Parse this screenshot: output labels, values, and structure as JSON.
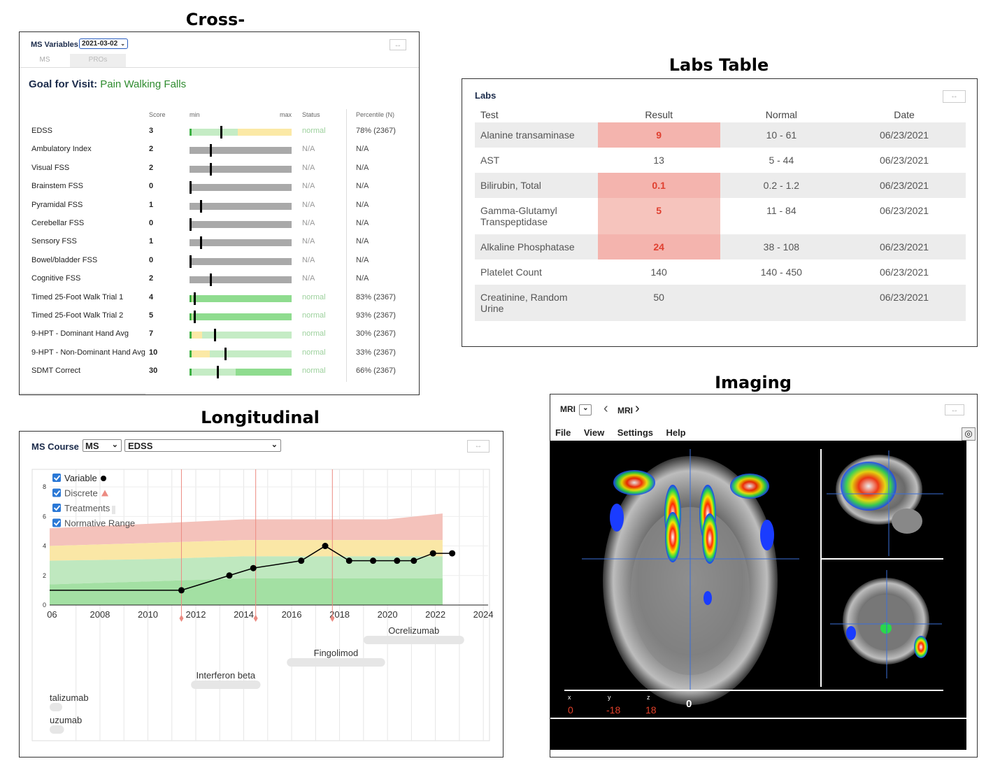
{
  "headings": {
    "cross_sectional": "Cross-sectional",
    "labs_table": "Labs Table",
    "longitudinal": "Longitudinal",
    "imaging": "Imaging"
  },
  "cross_sectional": {
    "title": "MS Variables",
    "date_select": "2021-03-02",
    "tabs": [
      "MS",
      "PROs"
    ],
    "goal_label": "Goal for Visit:",
    "goal_value": "Pain Walking Falls",
    "columns": {
      "score": "Score",
      "min": "min",
      "max": "max",
      "status": "Status",
      "percentile": "Percentile (N)"
    },
    "colors": {
      "green": "#c5ecc5",
      "green_dark": "#8fdc8f",
      "yellow": "#fbe9a6",
      "gray": "#a9a9a9",
      "goal": "#2e8b2e"
    },
    "rows": [
      {
        "label": "EDSS",
        "score": "3",
        "status": "normal",
        "percentile": "78% (2367)",
        "value": 0.3,
        "type": "edss"
      },
      {
        "label": "Ambulatory Index",
        "score": "2",
        "status": "N/A",
        "percentile": "N/A",
        "value": 0.2,
        "type": "gray"
      },
      {
        "label": "Visual FSS",
        "score": "2",
        "status": "N/A",
        "percentile": "N/A",
        "value": 0.2,
        "type": "gray"
      },
      {
        "label": "Brainstem FSS",
        "score": "0",
        "status": "N/A",
        "percentile": "N/A",
        "value": 0.0,
        "type": "gray"
      },
      {
        "label": "Pyramidal FSS",
        "score": "1",
        "status": "N/A",
        "percentile": "N/A",
        "value": 0.1,
        "type": "gray"
      },
      {
        "label": "Cerebellar FSS",
        "score": "0",
        "status": "N/A",
        "percentile": "N/A",
        "value": 0.0,
        "type": "gray"
      },
      {
        "label": "Sensory FSS",
        "score": "1",
        "status": "N/A",
        "percentile": "N/A",
        "value": 0.1,
        "type": "gray"
      },
      {
        "label": "Bowel/bladder FSS",
        "score": "0",
        "status": "N/A",
        "percentile": "N/A",
        "value": 0.0,
        "type": "gray"
      },
      {
        "label": "Cognitive FSS",
        "score": "2",
        "status": "N/A",
        "percentile": "N/A",
        "value": 0.2,
        "type": "gray"
      },
      {
        "label": "Timed 25-Foot Walk Trial 1",
        "score": "4",
        "status": "normal",
        "percentile": "83% (2367)",
        "value": 0.04,
        "type": "walk"
      },
      {
        "label": "Timed 25-Foot Walk Trial 2",
        "score": "5",
        "status": "normal",
        "percentile": "93% (2367)",
        "value": 0.04,
        "type": "walk"
      },
      {
        "label": "9-HPT - Dominant Hand Avg",
        "score": "7",
        "status": "normal",
        "percentile": "30% (2367)",
        "value": 0.24,
        "type": "hpt"
      },
      {
        "label": "9-HPT - Non-Dominant Hand Avg",
        "score": "10",
        "status": "normal",
        "percentile": "33% (2367)",
        "value": 0.34,
        "type": "hpt2"
      },
      {
        "label": "SDMT Correct",
        "score": "30",
        "status": "normal",
        "percentile": "66% (2367)",
        "value": 0.27,
        "type": "sdmt"
      }
    ]
  },
  "labs": {
    "title": "Labs",
    "columns": [
      "Test",
      "Result",
      "Normal",
      "Date"
    ],
    "rows": [
      {
        "test": "Alanine transaminase",
        "result": "9",
        "normal": "10 - 61",
        "date": "06/23/2021",
        "abnormal": true
      },
      {
        "test": "AST",
        "result": "13",
        "normal": "5 - 44",
        "date": "06/23/2021",
        "abnormal": false
      },
      {
        "test": "Bilirubin, Total",
        "result": "0.1",
        "normal": "0.2 - 1.2",
        "date": "06/23/2021",
        "abnormal": true
      },
      {
        "test": "Gamma-Glutamyl Transpeptidase",
        "result": "5",
        "normal": "11 - 84",
        "date": "06/23/2021",
        "abnormal": true
      },
      {
        "test": "Alkaline Phosphatase",
        "result": "24",
        "normal": "38 - 108",
        "date": "06/23/2021",
        "abnormal": true
      },
      {
        "test": "Platelet Count",
        "result": "140",
        "normal": "140 - 450",
        "date": "06/23/2021",
        "abnormal": false
      },
      {
        "test": "Creatinine, Random Urine",
        "result": "50",
        "normal": "",
        "date": "06/23/2021",
        "abnormal": false
      }
    ]
  },
  "longitudinal": {
    "title": "MS Course",
    "select_course": "MS",
    "select_variable": "EDSS",
    "legend": [
      {
        "label": "Variable",
        "checked": true,
        "marker": "circle"
      },
      {
        "label": "Discrete",
        "checked": true,
        "marker": "triangle"
      },
      {
        "label": "Treatments",
        "checked": true,
        "marker": "bar"
      },
      {
        "label": "Normative Range",
        "checked": true,
        "marker": "none"
      }
    ],
    "colors": {
      "red_band": "#f4c2bb",
      "yellow_band": "#fae7a6",
      "green_band": "#bfe8bf",
      "green_dark": "#a3e0a3",
      "treatment": "#e6e6e6"
    },
    "y_ticks": [
      "0",
      "2",
      "4",
      "6",
      "8"
    ],
    "x_ticks": [
      "06",
      "2008",
      "2010",
      "2012",
      "2014",
      "2016",
      "2018",
      "2020",
      "2022",
      "2024"
    ],
    "treatments": [
      "Ocrelizumab",
      "Fingolimod",
      "Interferon beta",
      "talizumab",
      "uzumab"
    ]
  },
  "chart_data": {
    "type": "line",
    "title": "",
    "xlabel": "",
    "ylabel": "",
    "xlim": [
      2005.9,
      2024.2
    ],
    "ylim": [
      0,
      9
    ],
    "grid": true,
    "legend_placement": "top-left",
    "series": [
      {
        "name": "Variable",
        "x": [
          2011.4,
          2013.4,
          2014.4,
          2016.4,
          2017.4,
          2018.4,
          2019.4,
          2020.4,
          2021.1,
          2021.9,
          2022.7
        ],
        "y": [
          1,
          2,
          2.5,
          3,
          4,
          3,
          3,
          3,
          3,
          3.5,
          3.5
        ]
      }
    ],
    "baseline": {
      "x": [
        2005.9,
        2011.4
      ],
      "y": [
        1,
        1
      ]
    },
    "discrete_events_x": [
      2011.4,
      2014.5,
      2017.7
    ],
    "normative_range": {
      "x": [
        2005.9,
        2010,
        2014,
        2018,
        2020,
        2022.3
      ],
      "red_top": [
        5.2,
        5.5,
        5.8,
        5.8,
        5.8,
        6.2
      ],
      "yellow_top": [
        4.0,
        4.2,
        4.4,
        4.4,
        4.4,
        4.4
      ],
      "green_light_top": [
        3.0,
        3.1,
        3.3,
        3.3,
        3.3,
        3.3
      ],
      "green_dark_top": [
        1.4,
        1.6,
        1.8,
        1.8,
        1.8,
        1.8
      ]
    },
    "treatment_spans": [
      {
        "name": "Ocrelizumab",
        "start": 2019.0,
        "end": 2023.2
      },
      {
        "name": "Fingolimod",
        "start": 2015.8,
        "end": 2019.9
      },
      {
        "name": "Interferon beta",
        "start": 2011.8,
        "end": 2014.7
      },
      {
        "name": "talizumab",
        "start": 2005.9,
        "end": 2006.4
      },
      {
        "name": "uzumab",
        "start": 2005.9,
        "end": 2006.5
      }
    ]
  },
  "imaging": {
    "modality_select": "MRI",
    "nav_label": "MRI",
    "menu": [
      "File",
      "View",
      "Settings",
      "Help"
    ],
    "coords": {
      "x_label": "x",
      "y_label": "y",
      "z_label": "z",
      "x": "0",
      "y": "-18",
      "z": "18",
      "value": "0"
    }
  }
}
